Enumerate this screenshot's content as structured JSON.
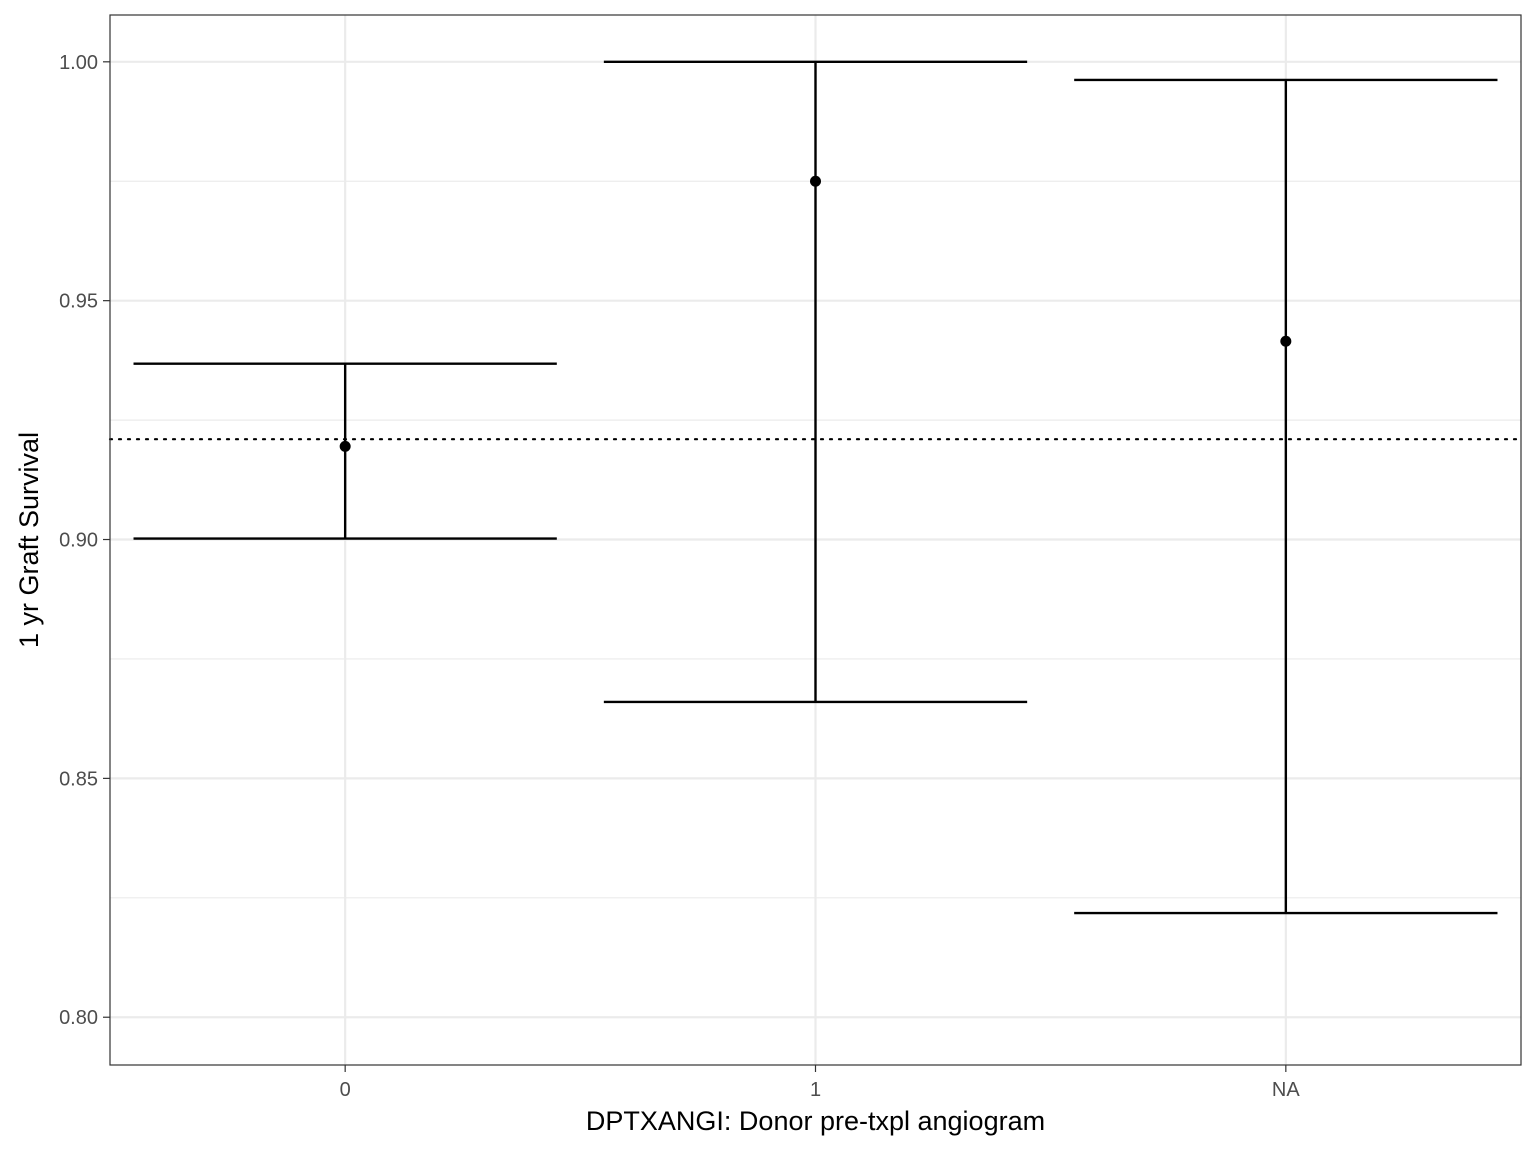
{
  "chart_data": {
    "type": "errorbar",
    "title": "",
    "xlabel": "DPTXANGI: Donor pre-txpl angiogram",
    "ylabel": "1 yr Graft Survival",
    "categories": [
      "0",
      "1",
      "NA"
    ],
    "estimates": [
      0.9195,
      0.975,
      0.9415
    ],
    "lower": [
      0.9002,
      0.866,
      0.8218
    ],
    "upper": [
      0.9368,
      1.0,
      0.9962
    ],
    "reference_line": 0.921,
    "reference_line_style": "dotted",
    "ylim": [
      0.79,
      1.0098
    ],
    "y_ticks": [
      0.8,
      0.85,
      0.9,
      0.95,
      1.0
    ],
    "y_tick_labels": [
      "0.80",
      "0.85",
      "0.90",
      "0.95",
      "1.00"
    ],
    "grid": true,
    "legend": "none",
    "colors": {
      "marks": "#000000",
      "grid": "#ebebeb",
      "panel_border": "#333333",
      "tick_text": "#4d4d4d"
    }
  }
}
